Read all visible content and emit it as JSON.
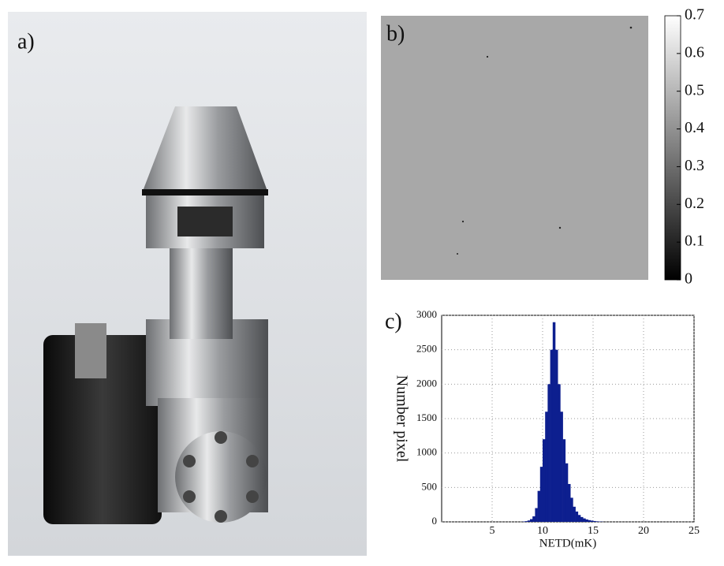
{
  "photo": {
    "label": "a)"
  },
  "chart_data": [
    {
      "type": "image",
      "label": "b)",
      "level": 0.46,
      "color_low": "#000000",
      "color_high": "#ffffff",
      "ylim": [
        0,
        0.7
      ],
      "yticks": [
        0,
        0.1,
        0.2,
        0.3,
        0.4,
        0.5,
        0.6,
        0.7
      ]
    },
    {
      "type": "histogram",
      "label": "c)",
      "xlabel": "NETD(mK)",
      "ylabel": "Number pixel",
      "color": "#0d1f8f",
      "grid": true,
      "xlim": [
        0,
        25
      ],
      "xticks": [
        5,
        10,
        15,
        20,
        25
      ],
      "ylim": [
        0,
        3000
      ],
      "yticks": [
        0,
        500,
        1000,
        1500,
        2000,
        2500,
        3000
      ],
      "bins": [
        8,
        8.25,
        8.5,
        8.75,
        9,
        9.25,
        9.5,
        9.75,
        10,
        10.25,
        10.5,
        10.75,
        11,
        11.25,
        11.5,
        11.75,
        12,
        12.25,
        12.5,
        12.75,
        13,
        13.25,
        13.5,
        13.75,
        14,
        14.25,
        14.5,
        14.75,
        15,
        15.25,
        15.5,
        15.75,
        16
      ],
      "values": [
        5,
        10,
        20,
        40,
        80,
        200,
        450,
        800,
        1200,
        1600,
        2000,
        2500,
        2900,
        2500,
        2000,
        1600,
        1200,
        850,
        550,
        350,
        220,
        150,
        100,
        70,
        50,
        35,
        25,
        18,
        12,
        8,
        5,
        3
      ]
    }
  ]
}
